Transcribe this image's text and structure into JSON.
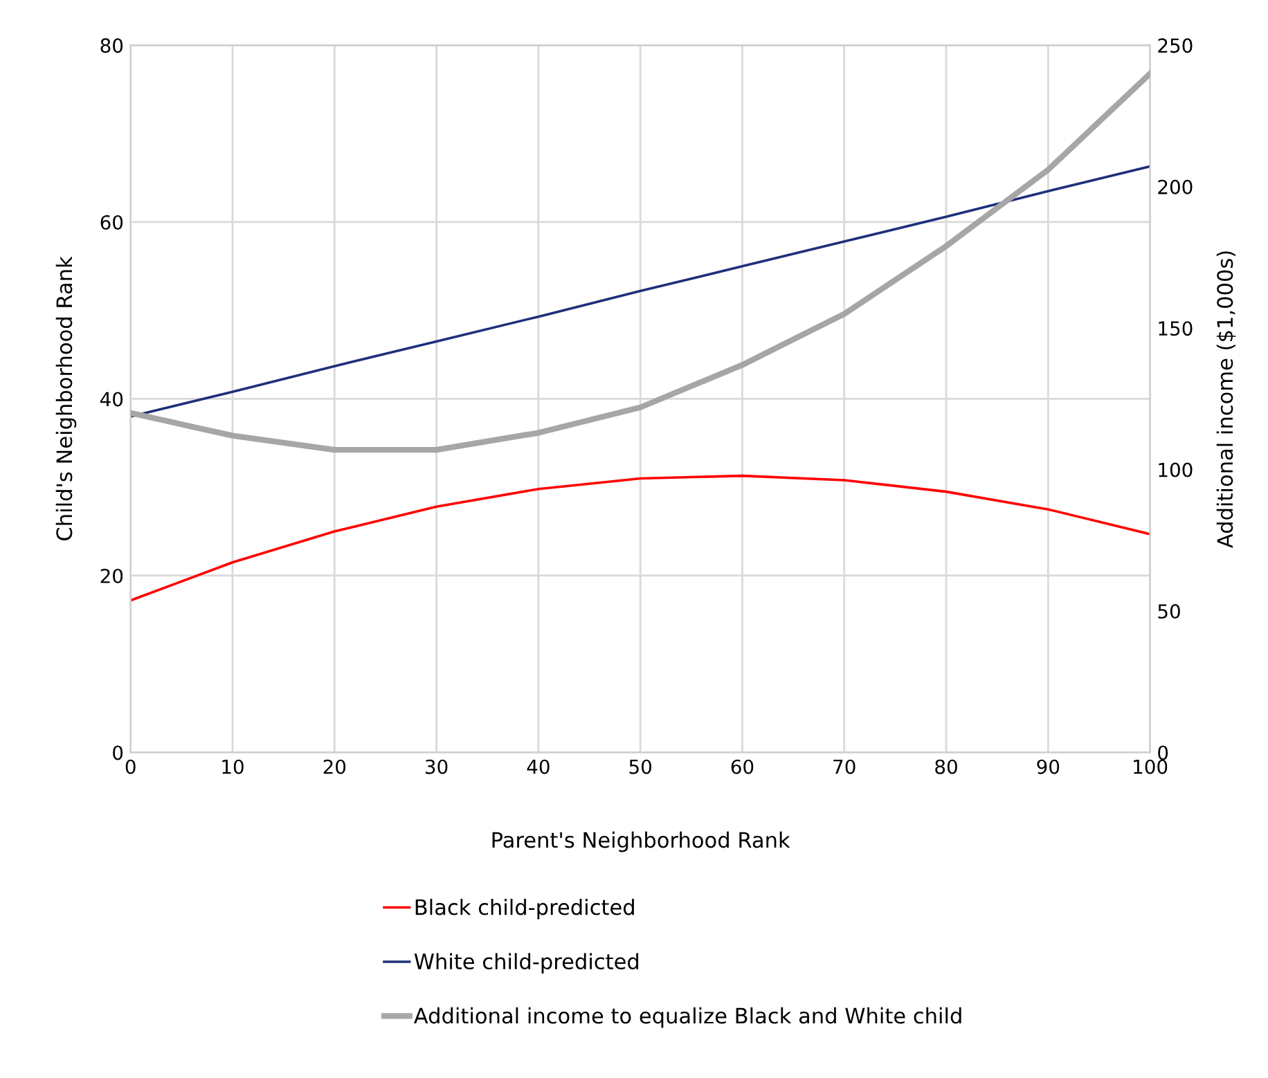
{
  "chart_data": {
    "type": "line",
    "xlabel": "Parent's Neighborhood Rank",
    "ylabel": "Child's Neighborhood Rank",
    "y2label": "Additional income ($1,000s)",
    "x": [
      0,
      10,
      20,
      30,
      40,
      50,
      60,
      70,
      80,
      90,
      100
    ],
    "series": [
      {
        "name": "Black child-predicted",
        "color": "#ff0000",
        "values": [
          17.2,
          21.5,
          25,
          27.8,
          29.8,
          31,
          31.3,
          30.8,
          29.5,
          27.5,
          24.7
        ]
      },
      {
        "name": "White child-predicted",
        "color": "#1f2f7a",
        "values": [
          38,
          40.8,
          43.7,
          46.5,
          49.3,
          52.2,
          55,
          57.8,
          60.6,
          63.5,
          66.3
        ]
      },
      {
        "name": "Additional income to equalize Black and White child",
        "color": "#a6a6a6",
        "axis": "y2",
        "values": [
          120,
          112,
          107,
          107,
          113,
          122,
          137,
          155,
          179,
          206,
          240
        ]
      }
    ],
    "xlim": [
      0,
      100
    ],
    "xticks": [
      0,
      10,
      20,
      30,
      40,
      50,
      60,
      70,
      80,
      90,
      100
    ],
    "ylim": [
      0,
      80
    ],
    "yticks": [
      0,
      20,
      40,
      60,
      80
    ],
    "y2lim": [
      0,
      250
    ],
    "y2ticks": [
      0,
      50,
      100,
      150,
      200,
      250
    ],
    "grid": true,
    "legend": "bottom"
  }
}
